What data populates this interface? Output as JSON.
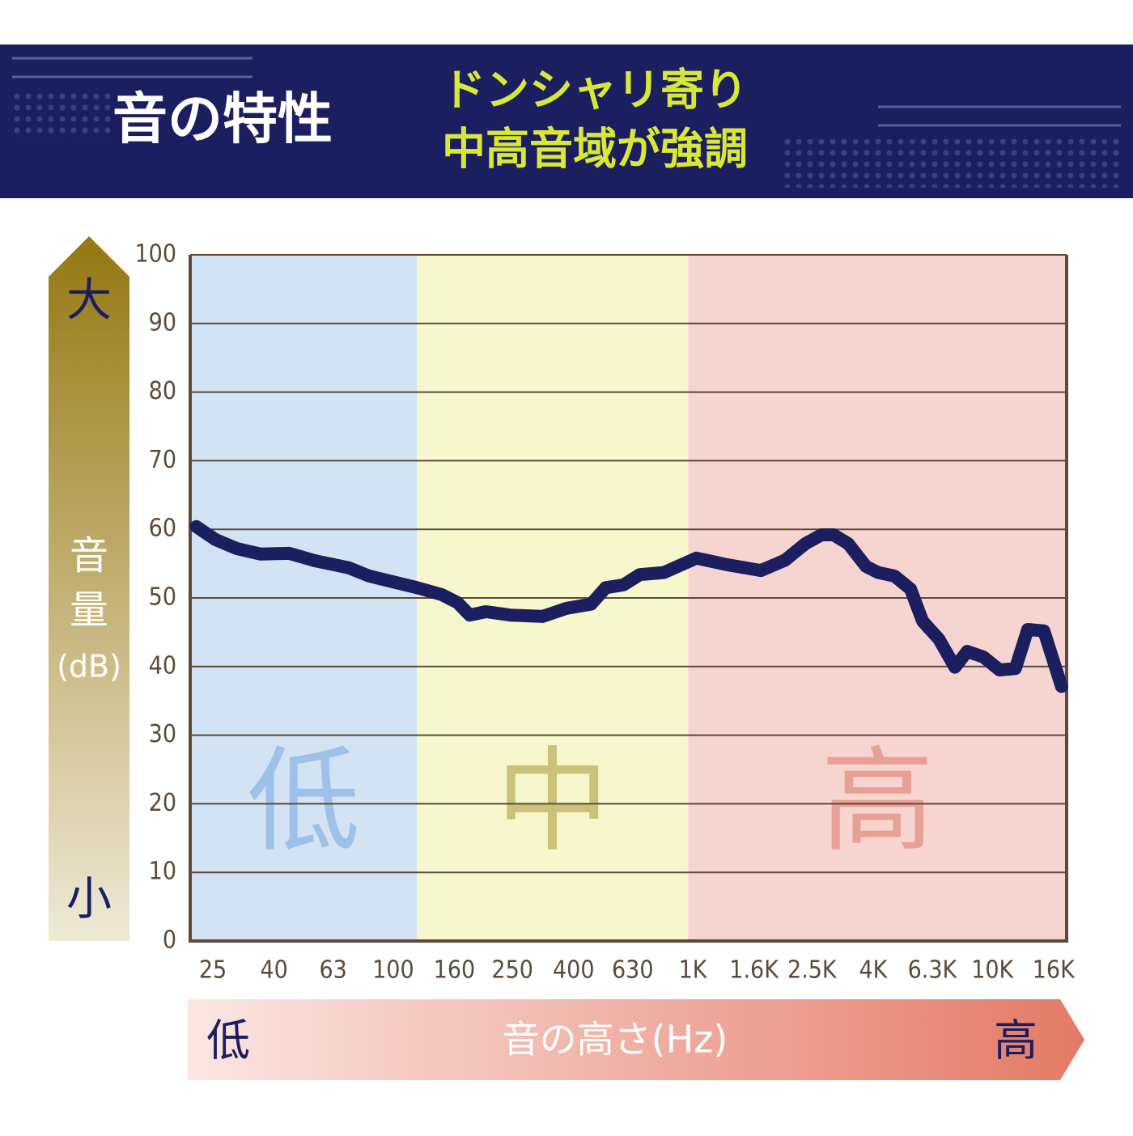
{
  "chart_data": {
    "type": "line",
    "title": "音の特性",
    "subtitle": [
      "ドンシャリ寄り",
      "中高音域が強調"
    ],
    "y_label": [
      "音",
      "量",
      "(dB)"
    ],
    "y_axis_ends": {
      "high": "大",
      "low": "小"
    },
    "x_label": "音の高さ(Hz)",
    "x_axis_ends": {
      "low": "低",
      "high": "高"
    },
    "x_log": true,
    "xlim": [
      21,
      17700
    ],
    "xticks": [
      25,
      40,
      63,
      100,
      160,
      250,
      400,
      630,
      {
        "value": 1000,
        "label": "1K"
      },
      {
        "value": 1600,
        "label": "1.6K"
      },
      {
        "value": 2500,
        "label": "2.5K"
      },
      {
        "value": 4000,
        "label": "4K"
      },
      {
        "value": 6300,
        "label": "6.3K"
      },
      {
        "value": 10000,
        "label": "10K"
      },
      {
        "value": 16000,
        "label": "16K"
      }
    ],
    "ylim": [
      0,
      100
    ],
    "yticks": [
      0,
      10,
      20,
      30,
      40,
      50,
      60,
      70,
      80,
      90,
      100
    ],
    "grid": true,
    "bands": [
      {
        "label": "低",
        "from": 21,
        "to": 120,
        "color": "#d3e3f4",
        "label_color": "#9dc1e8"
      },
      {
        "label": "中",
        "from": 120,
        "to": 966,
        "color": "#f6f7cc",
        "label_color": "#cbc27a"
      },
      {
        "label": "高",
        "from": 966,
        "to": 17700,
        "color": "#f6d5d0",
        "label_color": "#e9a094"
      }
    ],
    "x": [
      22,
      25.5,
      30,
      36,
      45,
      55,
      71,
      83,
      103,
      120,
      145,
      164,
      180,
      204,
      246,
      315,
      380,
      458,
      512,
      587,
      665,
      801,
      1028,
      1316,
      1687,
      2032,
      2375,
      2690,
      2951,
      3304,
      3785,
      4156,
      4710,
      5333,
      5852,
      6627,
      7503,
      8238,
      9325,
      10568,
      11940,
      13120,
      14860,
      17020
    ],
    "series": [
      {
        "color": "#1b1f60",
        "values": [
          60.4,
          58.5,
          57.2,
          56.4,
          56.5,
          55.4,
          54.4,
          53.2,
          52.2,
          51.5,
          50.5,
          49.3,
          47.5,
          48.0,
          47.5,
          47.3,
          48.5,
          49.1,
          51.5,
          51.9,
          53.4,
          53.7,
          55.8,
          54.8,
          54.0,
          55.5,
          57.9,
          59.2,
          59.2,
          57.9,
          54.6,
          53.7,
          53.2,
          51.3,
          46.6,
          44.0,
          39.9,
          42.2,
          41.4,
          39.5,
          39.7,
          45.4,
          45.2,
          37.1
        ]
      }
    ]
  }
}
